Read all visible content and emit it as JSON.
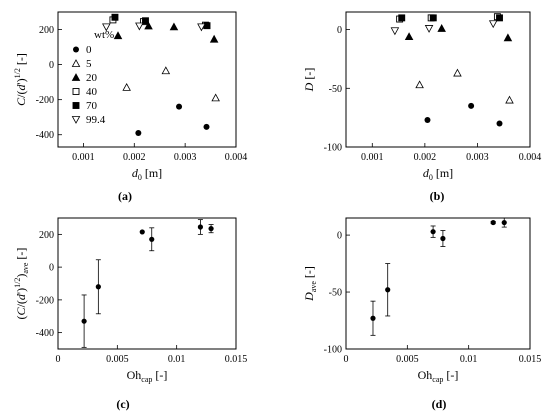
{
  "chart_data": [
    {
      "type": "scatter",
      "panel_label": "(a)",
      "xlabel": "d0 [m]",
      "ylabel": "C/(d')1/2 [-]",
      "xlim": [
        0.0005,
        0.004
      ],
      "ylim": [
        -470,
        300
      ],
      "xticks": [
        0.001,
        0.002,
        0.003,
        0.004
      ],
      "xtick_labels": [
        "0.001",
        "0.002",
        "0.003",
        "0.004"
      ],
      "yticks": [
        -400,
        -200,
        0,
        200
      ],
      "ytick_labels": [
        "-400",
        "-200",
        "0",
        "200"
      ],
      "legend": {
        "title": "wt%",
        "placement": "left-center"
      },
      "series": [
        {
          "name": "0",
          "marker": "circle-filled",
          "x": [
            0.00208,
            0.00288,
            0.00342
          ],
          "y": [
            -390,
            -240,
            -355
          ]
        },
        {
          "name": "5",
          "marker": "triangle-up-open",
          "x": [
            0.00185,
            0.00262,
            0.0036
          ],
          "y": [
            -130,
            -35,
            -190
          ]
        },
        {
          "name": "20",
          "marker": "triangle-up-filled",
          "x": [
            0.00168,
            0.00228,
            0.00278,
            0.00357
          ],
          "y": [
            165,
            220,
            215,
            145
          ]
        },
        {
          "name": "40",
          "marker": "square-open",
          "x": [
            0.00158,
            0.00218,
            0.0034
          ],
          "y": [
            255,
            245,
            225
          ]
        },
        {
          "name": "70",
          "marker": "square-filled",
          "x": [
            0.00162,
            0.00222,
            0.00343
          ],
          "y": [
            270,
            250,
            222
          ]
        },
        {
          "name": "99.4",
          "marker": "triangle-down-open",
          "x": [
            0.00145,
            0.0021,
            0.00332
          ],
          "y": [
            215,
            220,
            215
          ]
        }
      ]
    },
    {
      "type": "scatter",
      "panel_label": "(b)",
      "xlabel": "d0 [m]",
      "ylabel": "D [-]",
      "xlim": [
        0.0005,
        0.004
      ],
      "ylim": [
        -100,
        15
      ],
      "xticks": [
        0.001,
        0.002,
        0.003,
        0.004
      ],
      "xtick_labels": [
        "0.001",
        "0.002",
        "0.003",
        "0.004"
      ],
      "yticks": [
        -100,
        -50,
        0
      ],
      "ytick_labels": [
        "-100",
        "-50",
        "0"
      ],
      "series": [
        {
          "name": "0",
          "marker": "circle-filled",
          "x": [
            0.00205,
            0.00288,
            0.00342
          ],
          "y": [
            -77,
            -65,
            -80
          ]
        },
        {
          "name": "5",
          "marker": "triangle-up-open",
          "x": [
            0.0019,
            0.00262,
            0.00361
          ],
          "y": [
            -47,
            -37,
            -60
          ]
        },
        {
          "name": "20",
          "marker": "triangle-up-filled",
          "x": [
            0.0017,
            0.00232,
            0.00358
          ],
          "y": [
            -6,
            1,
            -7
          ]
        },
        {
          "name": "40",
          "marker": "square-open",
          "x": [
            0.00152,
            0.00212,
            0.00338
          ],
          "y": [
            9,
            10,
            11
          ]
        },
        {
          "name": "70",
          "marker": "square-filled",
          "x": [
            0.00156,
            0.00216,
            0.00342
          ],
          "y": [
            10,
            10,
            10
          ]
        },
        {
          "name": "99.4",
          "marker": "triangle-down-open",
          "x": [
            0.00143,
            0.00208,
            0.0033
          ],
          "y": [
            -1,
            1,
            5
          ]
        }
      ]
    },
    {
      "type": "scatter",
      "panel_label": "(c)",
      "xlabel": "Ohcap [-]",
      "ylabel": "(C/(d')1/2)ave [-]",
      "xlim": [
        0,
        0.015
      ],
      "ylim": [
        -500,
        300
      ],
      "xticks": [
        0,
        0.005,
        0.01,
        0.015
      ],
      "xtick_labels": [
        "0",
        "0.005",
        "0.01",
        "0.015"
      ],
      "yticks": [
        -400,
        -200,
        0,
        200
      ],
      "ytick_labels": [
        "-400",
        "-200",
        "0",
        "200"
      ],
      "points": [
        {
          "x": 0.0022,
          "y": -330,
          "err": 160
        },
        {
          "x": 0.0034,
          "y": -120,
          "err": 165
        },
        {
          "x": 0.0071,
          "y": 215,
          "err": 0
        },
        {
          "x": 0.0079,
          "y": 170,
          "err": 70
        },
        {
          "x": 0.012,
          "y": 245,
          "err": 45
        },
        {
          "x": 0.0129,
          "y": 235,
          "err": 25
        }
      ]
    },
    {
      "type": "scatter",
      "panel_label": "(d)",
      "xlabel": "Ohcap [-]",
      "ylabel": "Dave [-]",
      "xlim": [
        0,
        0.015
      ],
      "ylim": [
        -100,
        15
      ],
      "xticks": [
        0,
        0.005,
        0.01,
        0.015
      ],
      "xtick_labels": [
        "0",
        "0.005",
        "0.01",
        "0.015"
      ],
      "yticks": [
        -100,
        -50,
        0
      ],
      "ytick_labels": [
        "-100",
        "-50",
        "0"
      ],
      "points": [
        {
          "x": 0.0022,
          "y": -73,
          "err": 15
        },
        {
          "x": 0.0034,
          "y": -48,
          "err": 23
        },
        {
          "x": 0.0071,
          "y": 3,
          "err": 5
        },
        {
          "x": 0.0079,
          "y": -3,
          "err": 7
        },
        {
          "x": 0.012,
          "y": 11,
          "err": 1
        },
        {
          "x": 0.0129,
          "y": 11,
          "err": 4
        }
      ]
    }
  ]
}
